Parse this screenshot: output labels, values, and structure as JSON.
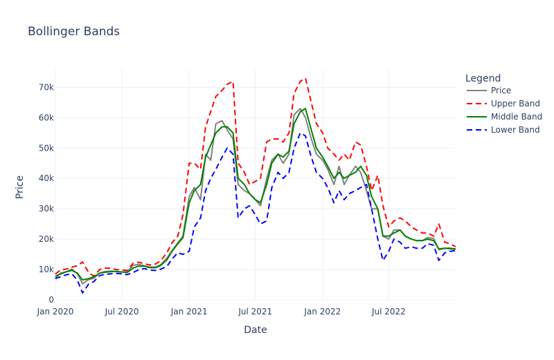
{
  "chart_data": {
    "type": "line",
    "title": "Bollinger Bands",
    "xlabel": "Date",
    "ylabel": "Price",
    "xlim": [
      "2020-01-01",
      "2022-12-31"
    ],
    "ylim": [
      0,
      76000
    ],
    "x_ticks": [
      "2020-01-01",
      "2020-07-01",
      "2021-01-01",
      "2021-07-01",
      "2022-01-01",
      "2022-07-01"
    ],
    "x_tick_labels": [
      "Jan 2020",
      "Jul 2020",
      "Jan 2021",
      "Jul 2021",
      "Jan 2022",
      "Jul 2022"
    ],
    "y_ticks": [
      0,
      10000,
      20000,
      30000,
      40000,
      50000,
      60000,
      70000
    ],
    "y_tick_labels": [
      "0",
      "10k",
      "20k",
      "30k",
      "40k",
      "50k",
      "60k",
      "70k"
    ],
    "grid": true,
    "legend": {
      "title": "Legend",
      "position": "right"
    },
    "x": [
      "2020-01-01",
      "2020-01-15",
      "2020-02-01",
      "2020-02-15",
      "2020-03-01",
      "2020-03-15",
      "2020-04-01",
      "2020-04-15",
      "2020-05-01",
      "2020-05-15",
      "2020-06-01",
      "2020-06-15",
      "2020-07-01",
      "2020-07-15",
      "2020-08-01",
      "2020-08-15",
      "2020-09-01",
      "2020-09-15",
      "2020-10-01",
      "2020-10-15",
      "2020-11-01",
      "2020-11-15",
      "2020-12-01",
      "2020-12-15",
      "2021-01-01",
      "2021-01-15",
      "2021-02-01",
      "2021-02-15",
      "2021-03-01",
      "2021-03-15",
      "2021-04-01",
      "2021-04-15",
      "2021-05-01",
      "2021-05-15",
      "2021-06-01",
      "2021-06-15",
      "2021-07-01",
      "2021-07-15",
      "2021-08-01",
      "2021-08-15",
      "2021-09-01",
      "2021-09-15",
      "2021-10-01",
      "2021-10-15",
      "2021-11-01",
      "2021-11-15",
      "2021-12-01",
      "2021-12-15",
      "2022-01-01",
      "2022-01-15",
      "2022-02-01",
      "2022-02-15",
      "2022-03-01",
      "2022-03-15",
      "2022-04-01",
      "2022-04-15",
      "2022-05-01",
      "2022-05-15",
      "2022-06-01",
      "2022-06-15",
      "2022-07-01",
      "2022-07-15",
      "2022-08-01",
      "2022-08-15",
      "2022-09-01",
      "2022-09-15",
      "2022-10-01",
      "2022-10-15",
      "2022-11-01",
      "2022-11-15",
      "2022-12-01",
      "2022-12-15",
      "2022-12-31"
    ],
    "series": [
      {
        "name": "Price",
        "color": "#808080",
        "dash": "solid",
        "values": [
          7200,
          8800,
          9300,
          10200,
          8600,
          5300,
          6700,
          7100,
          8800,
          9300,
          9500,
          9300,
          9200,
          9300,
          11400,
          11700,
          11200,
          10800,
          10800,
          11600,
          13800,
          16200,
          18800,
          21000,
          34000,
          37000,
          33000,
          48000,
          46000,
          58000,
          59000,
          56000,
          53000,
          38000,
          36000,
          35000,
          33000,
          31000,
          40000,
          46000,
          48000,
          45000,
          48000,
          61000,
          63000,
          60000,
          53000,
          48000,
          46000,
          43000,
          38000,
          44000,
          38000,
          41000,
          44000,
          42000,
          36000,
          30000,
          30000,
          21000,
          20000,
          23000,
          23000,
          21000,
          20000,
          19500,
          19500,
          20500,
          20200,
          16500,
          17000,
          16800,
          16600
        ]
      },
      {
        "name": "Upper Band",
        "color": "#ff0000",
        "dash": "dashed",
        "values": [
          8500,
          9800,
          10200,
          10800,
          11200,
          12500,
          9000,
          7800,
          10000,
          10500,
          10400,
          10000,
          9900,
          9700,
          12100,
          12400,
          11900,
          11500,
          11800,
          12900,
          15500,
          18800,
          21000,
          28000,
          45000,
          45000,
          43000,
          57000,
          62000,
          67000,
          69000,
          71000,
          72000,
          45000,
          42000,
          38000,
          39000,
          40000,
          52000,
          53000,
          53000,
          52000,
          55000,
          68000,
          72000,
          73000,
          65000,
          58000,
          55000,
          50000,
          48000,
          46000,
          48000,
          46000,
          52000,
          51000,
          44000,
          36000,
          41000,
          31000,
          24000,
          26000,
          27000,
          26000,
          24000,
          23000,
          22000,
          22000,
          21000,
          25000,
          19000,
          18500,
          17500
        ]
      },
      {
        "name": "Middle Band",
        "color": "#008000",
        "dash": "solid",
        "values": [
          7800,
          8500,
          9300,
          9700,
          8800,
          6600,
          7000,
          7600,
          8800,
          9100,
          9300,
          9400,
          9200,
          9000,
          10500,
          11100,
          11100,
          10600,
          10600,
          11300,
          13200,
          16000,
          18500,
          20500,
          32000,
          36000,
          38000,
          47000,
          51000,
          55000,
          57000,
          57000,
          55000,
          40000,
          38000,
          35000,
          33000,
          32000,
          38000,
          45000,
          48000,
          47000,
          49000,
          58000,
          62000,
          63000,
          56000,
          50000,
          47000,
          44000,
          40000,
          42000,
          40000,
          41000,
          42000,
          44000,
          41000,
          34000,
          30000,
          21000,
          21000,
          22000,
          23000,
          21000,
          20000,
          19500,
          19500,
          20000,
          19500,
          16800,
          17000,
          17000,
          16800
        ]
      },
      {
        "name": "Lower Band",
        "color": "#0000ff",
        "dash": "dashed",
        "values": [
          7000,
          7600,
          8300,
          8600,
          6500,
          2300,
          5200,
          6000,
          8000,
          8400,
          8600,
          8700,
          8600,
          8300,
          9000,
          9900,
          10300,
          9800,
          9700,
          10100,
          11000,
          13500,
          15500,
          15000,
          16000,
          24000,
          27000,
          36000,
          40000,
          43000,
          47000,
          50000,
          48000,
          27000,
          30000,
          31000,
          28000,
          25000,
          26000,
          37000,
          42000,
          40000,
          42000,
          50000,
          55000,
          54000,
          47000,
          42000,
          40000,
          37000,
          32000,
          36000,
          33000,
          35000,
          36000,
          37000,
          38000,
          30000,
          20000,
          13000,
          16000,
          20000,
          19000,
          17000,
          17500,
          17000,
          17000,
          18500,
          18000,
          13000,
          15500,
          16000,
          16200
        ]
      }
    ]
  }
}
